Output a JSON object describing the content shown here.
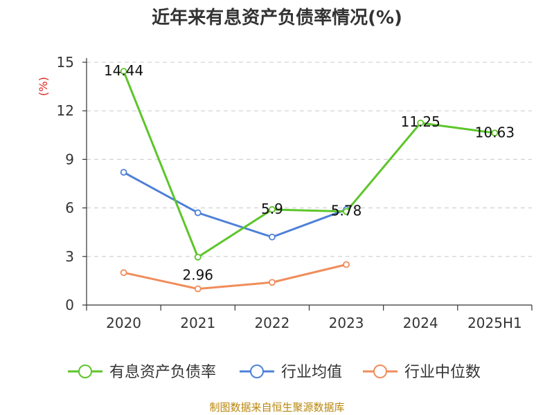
{
  "chart_data": {
    "type": "line",
    "title": "近年来有息资产负债率情况(%)",
    "unit_label": "(%)",
    "categories": [
      "2020",
      "2021",
      "2022",
      "2023",
      "2024",
      "2025H1"
    ],
    "ylim": [
      0,
      15
    ],
    "yticks": [
      "0",
      "3",
      "6",
      "9",
      "12",
      "15"
    ],
    "grid": true,
    "legend_position": "bottom",
    "series": [
      {
        "name": "有息资产负债率",
        "color": "#5cc52a",
        "values": [
          14.44,
          2.96,
          5.9,
          5.78,
          11.25,
          10.63
        ],
        "labels": [
          "14.44",
          "2.96",
          "5.9",
          "5.78",
          "11.25",
          "10.63"
        ]
      },
      {
        "name": "行业均值",
        "color": "#4e80d8",
        "values": [
          8.2,
          5.7,
          4.2,
          5.9,
          null,
          null
        ]
      },
      {
        "name": "行业中位数",
        "color": "#f08c5a",
        "values": [
          2.0,
          1.0,
          1.4,
          2.5,
          null,
          null
        ]
      }
    ],
    "source": "制图数据来自恒生聚源数据库",
    "source_color": "#b8860b"
  }
}
